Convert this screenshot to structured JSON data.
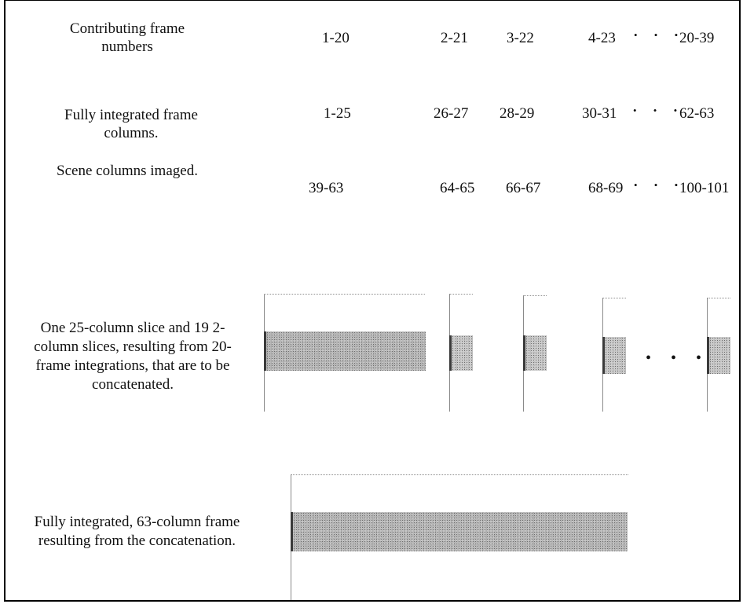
{
  "rows": {
    "contributing": {
      "label": "Contributing frame numbers",
      "values": [
        "1-20",
        "2-21",
        "3-22",
        "4-23",
        "20-39"
      ]
    },
    "integrated": {
      "label": "Fully integrated frame columns.",
      "values": [
        "1-25",
        "26-27",
        "28-29",
        "30-31",
        "62-63"
      ]
    },
    "scene": {
      "label": "Scene columns imaged.",
      "values": [
        "39-63",
        "64-65",
        "66-67",
        "68-69",
        "100-101"
      ]
    }
  },
  "slices_caption": "One 25-column slice and 19 2-column slices, resulting from 20-frame integrations, that are to be concatenated.",
  "concat_caption": "Fully integrated, 63-column frame resulting from the concatenation.",
  "ellipsis": "• • •",
  "slices_ellipsis": "• • •"
}
